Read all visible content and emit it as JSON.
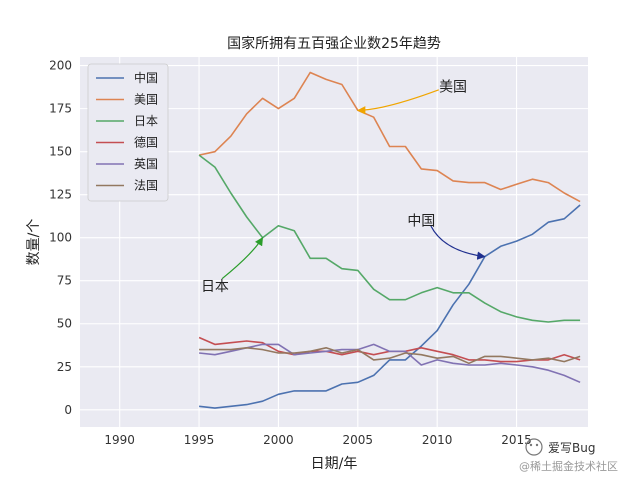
{
  "chart_data": {
    "type": "line",
    "title": "国家所拥有五百强企业数25年趋势",
    "xlabel": "日期/年",
    "ylabel": "数量/个",
    "xlim": [
      1987.5,
      2019.5
    ],
    "ylim": [
      -10,
      205
    ],
    "xticks": [
      1990,
      1995,
      2000,
      2005,
      2010,
      2015
    ],
    "yticks": [
      0,
      25,
      50,
      75,
      100,
      125,
      150,
      175,
      200
    ],
    "grid": true,
    "legend_position": "top-left",
    "x": [
      1995,
      1996,
      1997,
      1998,
      1999,
      2000,
      2001,
      2002,
      2003,
      2004,
      2005,
      2006,
      2007,
      2008,
      2009,
      2010,
      2011,
      2012,
      2013,
      2014,
      2015,
      2016,
      2017,
      2018,
      2019
    ],
    "series": [
      {
        "name": "中国",
        "color": "#4c72b0",
        "values": [
          2,
          1,
          2,
          3,
          5,
          9,
          11,
          11,
          11,
          15,
          16,
          20,
          29,
          29,
          37,
          46,
          61,
          73,
          89,
          95,
          98,
          102,
          109,
          111,
          119
        ]
      },
      {
        "name": "美国",
        "color": "#dd8452",
        "values": [
          148,
          150,
          159,
          172,
          181,
          175,
          181,
          196,
          192,
          189,
          174,
          170,
          153,
          153,
          140,
          139,
          133,
          132,
          132,
          128,
          131,
          134,
          132,
          126,
          121
        ]
      },
      {
        "name": "日本",
        "color": "#55a868",
        "values": [
          148,
          141,
          126,
          112,
          100,
          107,
          104,
          88,
          88,
          82,
          81,
          70,
          64,
          64,
          68,
          71,
          68,
          68,
          62,
          57,
          54,
          52,
          51,
          52,
          52
        ]
      },
      {
        "name": "德国",
        "color": "#c44e52",
        "values": [
          42,
          38,
          39,
          40,
          39,
          34,
          32,
          34,
          34,
          32,
          34,
          32,
          34,
          34,
          36,
          34,
          32,
          29,
          29,
          28,
          28,
          29,
          29,
          32,
          29
        ]
      },
      {
        "name": "英国",
        "color": "#8172b3",
        "values": [
          33,
          32,
          34,
          36,
          38,
          38,
          32,
          33,
          34,
          35,
          35,
          38,
          34,
          34,
          26,
          29,
          27,
          26,
          26,
          27,
          26,
          25,
          23,
          20,
          16
        ]
      },
      {
        "name": "法国",
        "color": "#937860",
        "values": [
          35,
          35,
          35,
          36,
          35,
          33,
          33,
          34,
          36,
          33,
          35,
          29,
          30,
          33,
          32,
          30,
          31,
          27,
          31,
          31,
          30,
          29,
          30,
          28,
          31
        ]
      }
    ],
    "annotations": [
      {
        "text": "美国",
        "target": [
          2005,
          174
        ],
        "text_at": [
          2011,
          188
        ],
        "color": "#f0a500"
      },
      {
        "text": "中国",
        "target": [
          2013,
          89
        ],
        "text_at": [
          2009,
          110
        ],
        "color": "#1f2f8f"
      },
      {
        "text": "日本",
        "target": [
          1999,
          100
        ],
        "text_at": [
          1996,
          72
        ],
        "color": "#2a9d2a"
      }
    ]
  },
  "watermark": {
    "line1": "爱写Bug",
    "line2": "@稀土掘金技术社区"
  }
}
